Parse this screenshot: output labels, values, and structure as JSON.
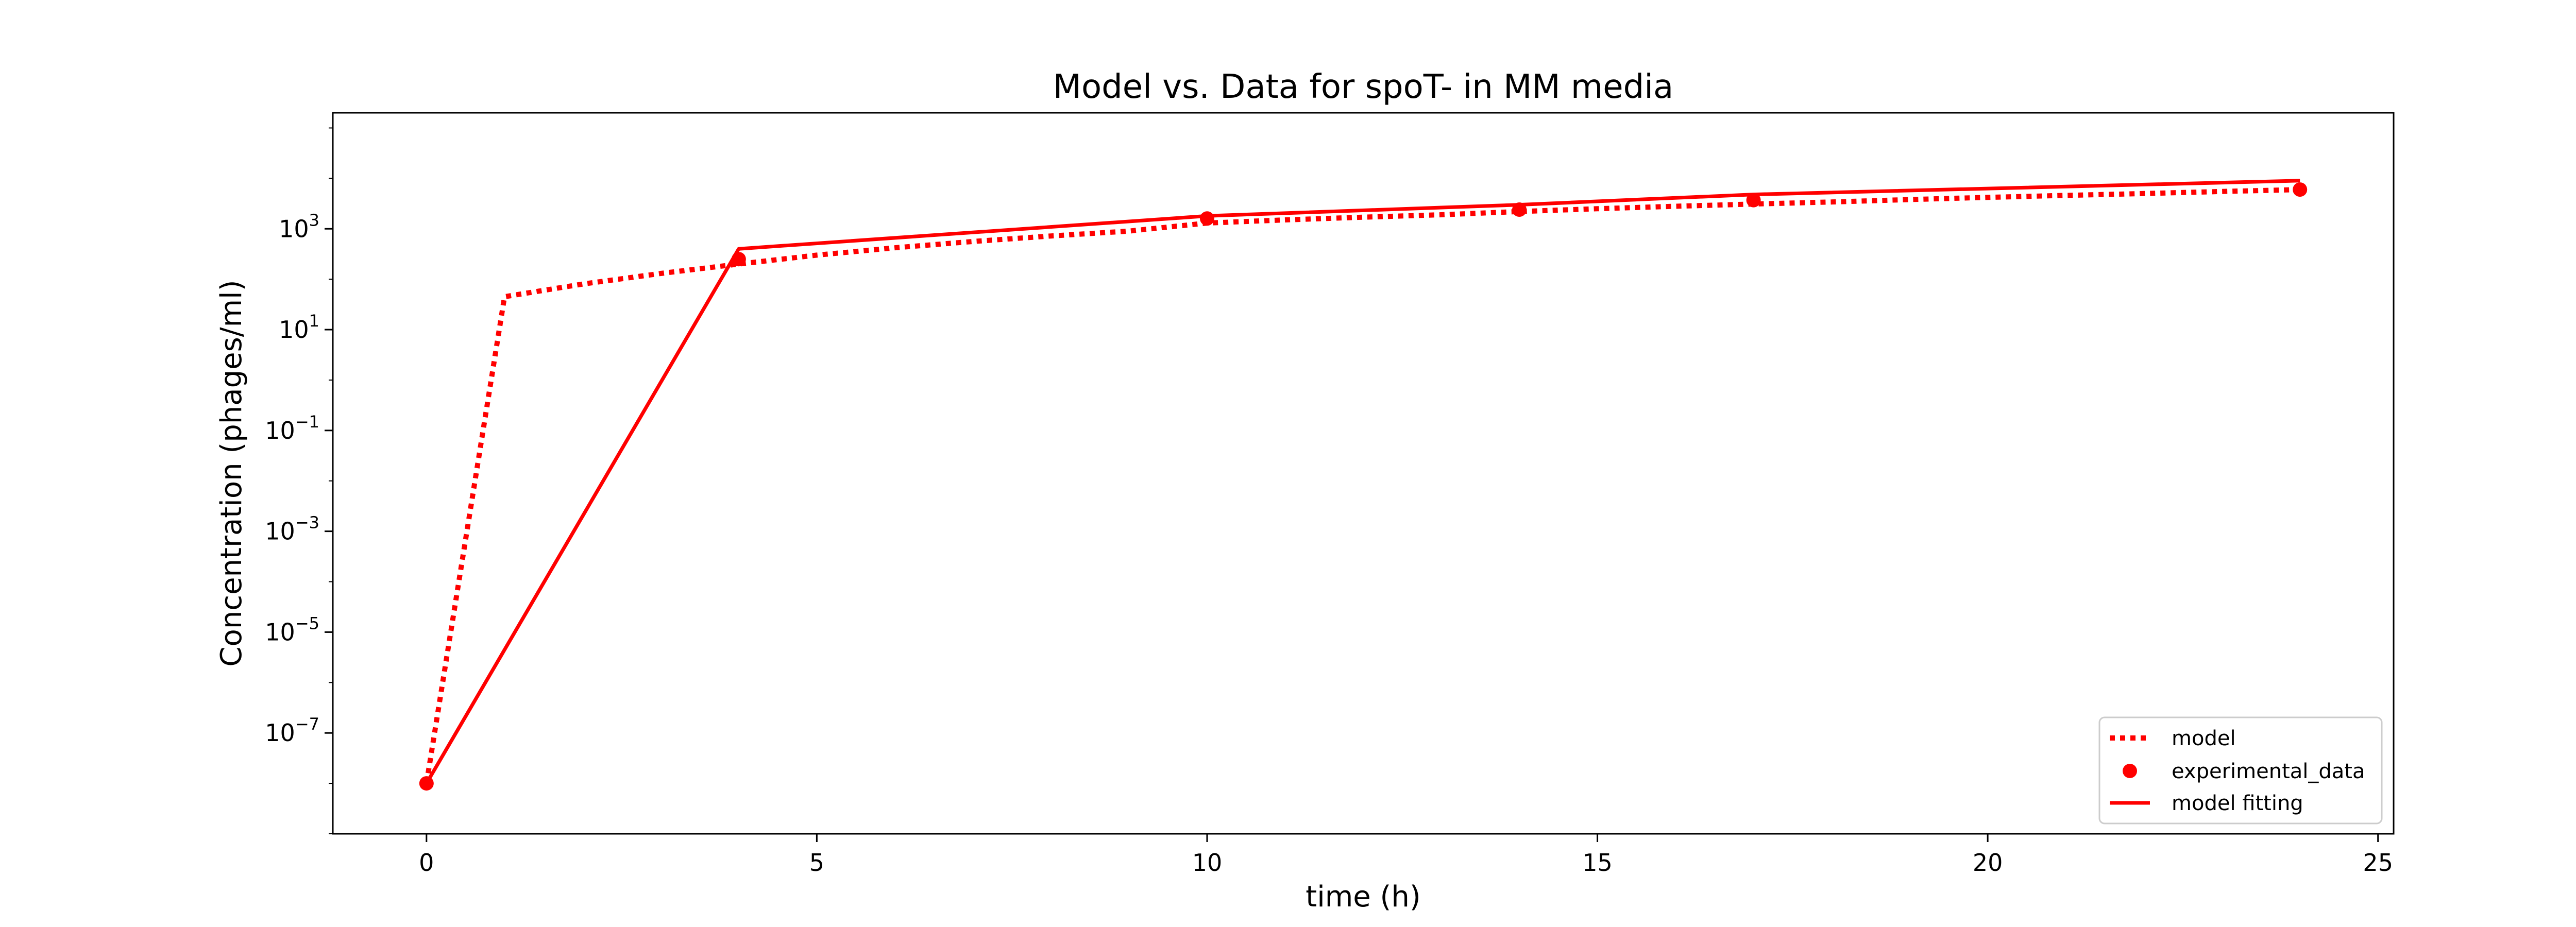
{
  "colors": {
    "series": "#ff0000",
    "axes": "#000000",
    "legend_frame": "#cccccc",
    "background": "#ffffff"
  },
  "chart_data": {
    "type": "line",
    "title": "Model vs. Data for spoT- in MM media",
    "xlabel": "time (h)",
    "ylabel": "Concentration (phages/ml)",
    "xlim": [
      -1.2,
      25.2
    ],
    "ylim": [
      1e-09,
      200000
    ],
    "yscale": "log",
    "grid": false,
    "legend_position": "lower right",
    "x_ticks": [
      {
        "value": 0,
        "label": "0"
      },
      {
        "value": 5,
        "label": "5"
      },
      {
        "value": 10,
        "label": "10"
      },
      {
        "value": 15,
        "label": "15"
      },
      {
        "value": 20,
        "label": "20"
      },
      {
        "value": 25,
        "label": "25"
      }
    ],
    "y_ticks": [
      {
        "value": 1e-07,
        "base": "10",
        "exp": "−7"
      },
      {
        "value": 1e-05,
        "base": "10",
        "exp": "−5"
      },
      {
        "value": 0.001,
        "base": "10",
        "exp": "−3"
      },
      {
        "value": 0.1,
        "base": "10",
        "exp": "−1"
      },
      {
        "value": 10,
        "base": "10",
        "exp": "1"
      },
      {
        "value": 1000,
        "base": "10",
        "exp": "3"
      }
    ],
    "series": [
      {
        "name": "model",
        "style": "dotted",
        "x": [
          0,
          1,
          2,
          3,
          4,
          5,
          6,
          7,
          8,
          9,
          10,
          11,
          12,
          13,
          14,
          15,
          16,
          17,
          18,
          19,
          20,
          21,
          22,
          23,
          24
        ],
        "y": [
          1e-08,
          45,
          80,
          130,
          200,
          300,
          420,
          560,
          720,
          900,
          1300,
          1500,
          1700,
          1900,
          2200,
          2500,
          2800,
          3100,
          3400,
          3800,
          4200,
          4600,
          5000,
          5500,
          6000
        ]
      },
      {
        "name": "experimental_data",
        "style": "markers",
        "x": [
          0,
          4,
          10,
          14,
          17,
          24
        ],
        "y": [
          1e-08,
          250,
          1600,
          2400,
          3700,
          6000
        ]
      },
      {
        "name": "model fitting",
        "style": "solid",
        "x": [
          0,
          4,
          10,
          14,
          17,
          24
        ],
        "y": [
          1e-08,
          400,
          1800,
          3000,
          4800,
          9000
        ]
      }
    ]
  }
}
